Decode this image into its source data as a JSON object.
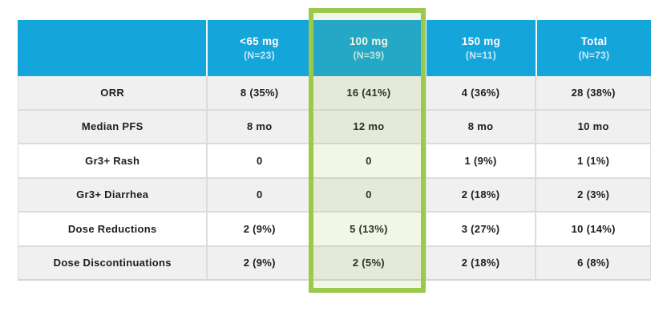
{
  "chart_data": {
    "type": "table",
    "title": "",
    "columns": [
      {
        "label": "<65 mg",
        "n": "(N=23)"
      },
      {
        "label": "100 mg",
        "n": "(N=39)",
        "highlighted": true
      },
      {
        "label": "150 mg",
        "n": "(N=11)"
      },
      {
        "label": "Total",
        "n": "(N=73)"
      }
    ],
    "rows": [
      {
        "label": "ORR",
        "values": [
          "8 (35%)",
          "16 (41%)",
          "4 (36%)",
          "28 (38%)"
        ]
      },
      {
        "label": "Median PFS",
        "values": [
          "8 mo",
          "12 mo",
          "8 mo",
          "10 mo"
        ]
      },
      {
        "label": "Gr3+ Rash",
        "values": [
          "0",
          "0",
          "1 (9%)",
          "1 (1%)"
        ]
      },
      {
        "label": "Gr3+ Diarrhea",
        "values": [
          "0",
          "0",
          "2 (18%)",
          "2 (3%)"
        ]
      },
      {
        "label": "Dose Reductions",
        "values": [
          "2 (9%)",
          "5 (13%)",
          "3 (27%)",
          "10 (14%)"
        ]
      },
      {
        "label": "Dose Discontinuations",
        "values": [
          "2 (9%)",
          "2 (5%)",
          "2 (18%)",
          "6 (8%)"
        ]
      }
    ],
    "highlighted_column": "100 mg",
    "layout": {
      "grid": true,
      "banded_rows": true
    }
  },
  "colors": {
    "header_bg": "#14a5db",
    "header_text": "#ffffff",
    "highlight_border": "#9cc94c",
    "highlight_fill": "rgba(146,197,64,0.13)",
    "row_gray": "#f0f0f0",
    "row_white": "#ffffff",
    "grid_line": "#dcdcdc",
    "body_text": "#1d1d1b"
  }
}
